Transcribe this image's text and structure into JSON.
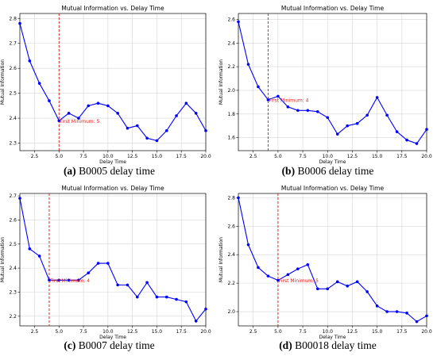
{
  "chart_data": [
    {
      "type": "line",
      "title": "Mutual Information vs. Delay Time",
      "xlabel": "Delay Time",
      "ylabel": "Mutual Information",
      "caption_letter": "(a)",
      "caption_text": " B0005 delay time",
      "xlim": [
        1,
        20
      ],
      "ylim": [
        2.27,
        2.82
      ],
      "xticks": [
        2.5,
        5.0,
        7.5,
        10.0,
        12.5,
        15.0,
        17.5,
        20.0
      ],
      "yticks": [
        2.3,
        2.4,
        2.5,
        2.6,
        2.7,
        2.8
      ],
      "grid": true,
      "color": "#0000ff",
      "marker_color": "#e01010",
      "series": [
        {
          "x": [
            1,
            2,
            3,
            4,
            5,
            6,
            7,
            8,
            9,
            10,
            11,
            12,
            13,
            14,
            15,
            16,
            17,
            18,
            19,
            20
          ],
          "y": [
            2.78,
            2.63,
            2.54,
            2.47,
            2.39,
            2.42,
            2.4,
            2.45,
            2.46,
            2.45,
            2.42,
            2.36,
            2.37,
            2.32,
            2.31,
            2.35,
            2.41,
            2.46,
            2.42,
            2.35
          ]
        }
      ],
      "marker_x": 5,
      "annotation": "First Minimum: 5"
    },
    {
      "type": "line",
      "title": "Mutual Information vs. Delay Time",
      "xlabel": "Delay Time",
      "ylabel": "Mutual Information",
      "caption_letter": "(b)",
      "caption_text": " B0006 delay time",
      "xlim": [
        1,
        20
      ],
      "ylim": [
        1.49,
        2.65
      ],
      "xticks": [
        2.5,
        5.0,
        7.5,
        10.0,
        12.5,
        15.0,
        17.5,
        20.0
      ],
      "yticks": [
        1.6,
        1.8,
        2.0,
        2.2,
        2.4,
        2.6
      ],
      "grid": true,
      "color": "#0000ff",
      "marker_color": "#e01010",
      "series": [
        {
          "x": [
            1,
            2,
            3,
            4,
            5,
            6,
            7,
            8,
            9,
            10,
            11,
            12,
            13,
            14,
            15,
            16,
            17,
            18,
            19,
            20
          ],
          "y": [
            2.58,
            2.22,
            2.03,
            1.92,
            1.95,
            1.86,
            1.83,
            1.83,
            1.82,
            1.77,
            1.63,
            1.7,
            1.72,
            1.79,
            1.94,
            1.79,
            1.65,
            1.58,
            1.55,
            1.67
          ]
        }
      ],
      "marker_x": 4,
      "annotation": "First Minimum: 4"
    },
    {
      "type": "line",
      "title": "Mutual Information vs. Delay Time",
      "xlabel": "Delay Time",
      "ylabel": "Mutual Information",
      "caption_letter": "(c)",
      "caption_text": " B0007 delay time",
      "xlim": [
        1,
        20
      ],
      "ylim": [
        2.16,
        2.71
      ],
      "xticks": [
        2.5,
        5.0,
        7.5,
        10.0,
        12.5,
        15.0,
        17.5,
        20.0
      ],
      "yticks": [
        2.2,
        2.3,
        2.4,
        2.5,
        2.6,
        2.7
      ],
      "grid": true,
      "color": "#0000ff",
      "marker_color": "#e01010",
      "series": [
        {
          "x": [
            1,
            2,
            3,
            4,
            5,
            6,
            7,
            8,
            9,
            10,
            11,
            12,
            13,
            14,
            15,
            16,
            17,
            18,
            19,
            20
          ],
          "y": [
            2.69,
            2.48,
            2.45,
            2.35,
            2.35,
            2.35,
            2.35,
            2.38,
            2.42,
            2.42,
            2.33,
            2.33,
            2.28,
            2.34,
            2.28,
            2.28,
            2.27,
            2.26,
            2.18,
            2.23
          ]
        }
      ],
      "marker_x": 4,
      "annotation": "First Minimum: 4"
    },
    {
      "type": "line",
      "title": "Mutual Information vs. Delay Time",
      "xlabel": "Delay Time",
      "ylabel": "Mutual Information",
      "caption_letter": "(d)",
      "caption_text": " B00018 delay time",
      "xlim": [
        1,
        20
      ],
      "ylim": [
        1.9,
        2.83
      ],
      "xticks": [
        2.5,
        5.0,
        7.5,
        10.0,
        12.5,
        15.0,
        17.5,
        20.0
      ],
      "yticks": [
        2.0,
        2.2,
        2.4,
        2.6,
        2.8
      ],
      "grid": true,
      "color": "#0000ff",
      "marker_color": "#e01010",
      "series": [
        {
          "x": [
            1,
            2,
            3,
            4,
            5,
            6,
            7,
            8,
            9,
            10,
            11,
            12,
            13,
            14,
            15,
            16,
            17,
            18,
            19,
            20
          ],
          "y": [
            2.8,
            2.47,
            2.31,
            2.25,
            2.22,
            2.26,
            2.3,
            2.33,
            2.16,
            2.16,
            2.21,
            2.18,
            2.21,
            2.14,
            2.04,
            2.0,
            2.0,
            1.99,
            1.93,
            1.97
          ]
        }
      ],
      "marker_x": 5,
      "annotation": "First Minimum: 5"
    }
  ]
}
